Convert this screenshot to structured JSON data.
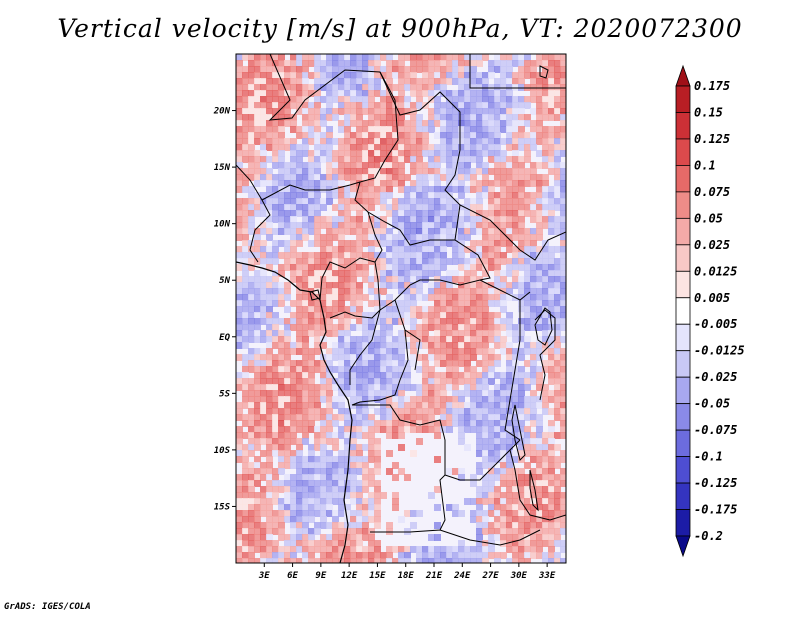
{
  "title": "Vertical velocity [m/s] at 900hPa, VT: 2020072300",
  "footer": "GrADS: IGES/COLA",
  "map": {
    "lon_range": [
      0,
      35
    ],
    "lat_range": [
      -20,
      25
    ],
    "lat_labels": [
      "20N",
      "15N",
      "10N",
      "5N",
      "EQ",
      "5S",
      "10S",
      "15S"
    ],
    "lat_values": [
      20,
      15,
      10,
      5,
      0,
      -5,
      -10,
      -15
    ],
    "lon_labels": [
      "3E",
      "6E",
      "9E",
      "12E",
      "15E",
      "18E",
      "21E",
      "24E",
      "27E",
      "30E",
      "33E"
    ],
    "lon_values": [
      3,
      6,
      9,
      12,
      15,
      18,
      21,
      24,
      27,
      30,
      33
    ]
  },
  "colorbar": {
    "labels": [
      "0.175",
      "0.15",
      "0.125",
      "0.1",
      "0.075",
      "0.05",
      "0.025",
      "0.0125",
      "0.005",
      "-0.005",
      "-0.0125",
      "-0.025",
      "-0.05",
      "-0.075",
      "-0.1",
      "-0.125",
      "-0.175",
      "-0.2"
    ],
    "colors": [
      "#a01018",
      "#b81e24",
      "#cc3036",
      "#dc4a4c",
      "#e66a68",
      "#ee8c88",
      "#f4aaa8",
      "#f8c8c6",
      "#fce4e2",
      "#ffffff",
      "#e4e4fc",
      "#c8c8f6",
      "#a8a8f0",
      "#8a8ae8",
      "#6c6cde",
      "#4e4ed2",
      "#3434c0",
      "#1c1ca6",
      "#0a0a8a"
    ]
  }
}
